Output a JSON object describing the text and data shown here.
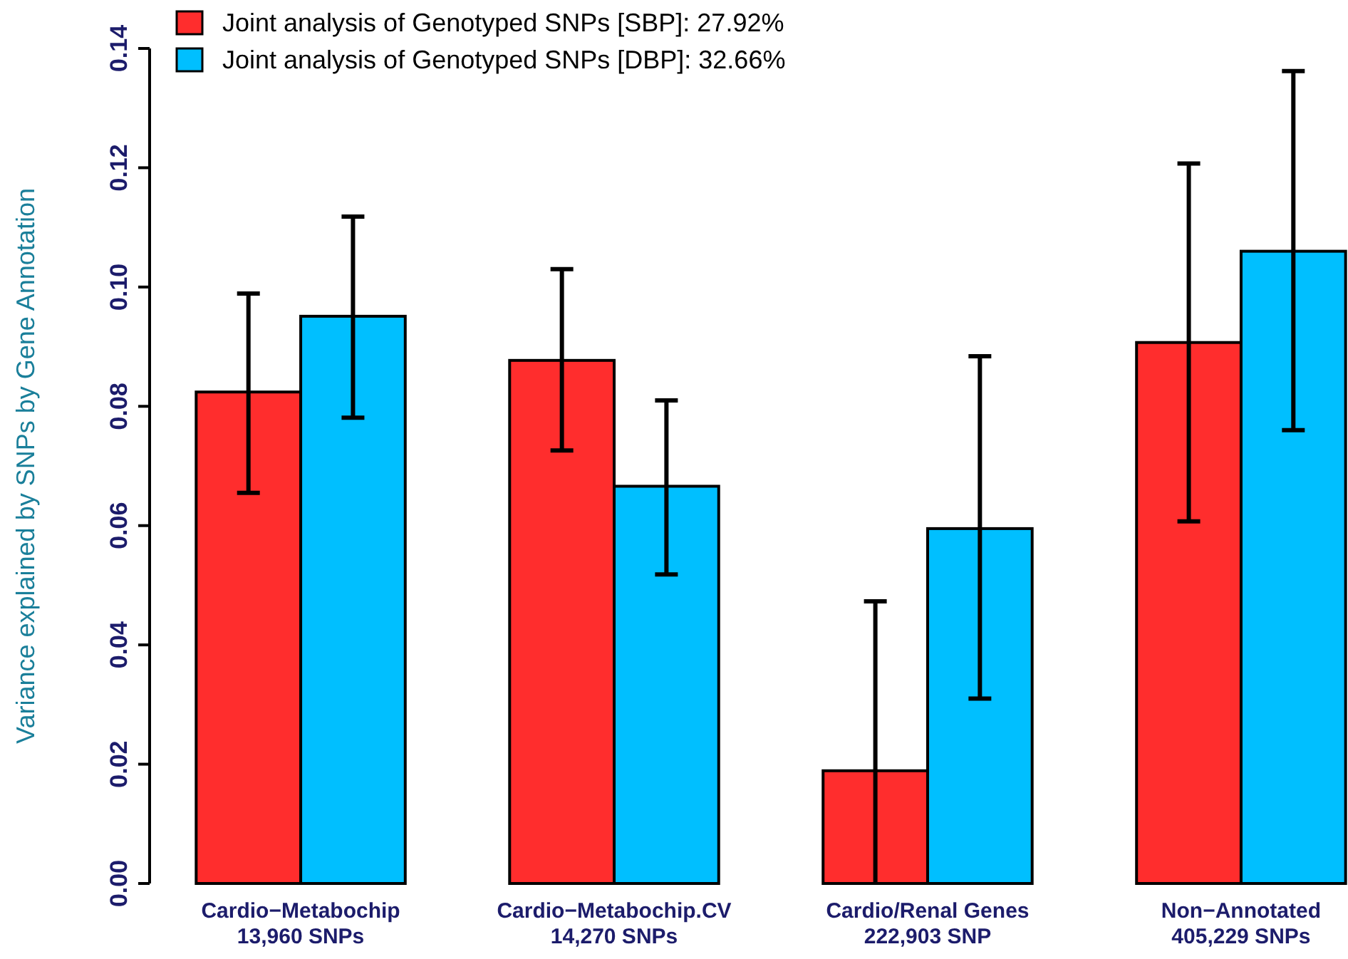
{
  "chart_data": {
    "type": "bar",
    "ylabel": "Variance explained by SNPs by Gene Annotation",
    "categories": [
      "Cardio−Metabochip\n13,960 SNPs",
      "Cardio−Metabochip.CV\n14,270 SNPs",
      "Cardio/Renal Genes\n222,903 SNP",
      "Non−Annotated\n405,229 SNPs"
    ],
    "series": [
      {
        "name": "Joint analysis of Genotyped SNPs [SBP]: 27.92%",
        "color": "#ff2d2d",
        "values": [
          0.0824,
          0.0877,
          0.0189,
          0.0907
        ],
        "errors": [
          [
            0.0655,
            0.0989
          ],
          [
            0.0726,
            0.103
          ],
          [
            0,
            0.0473
          ],
          [
            0.0607,
            0.1207
          ]
        ]
      },
      {
        "name": "Joint analysis of Genotyped SNPs [DBP]: 32.66%",
        "color": "#00bfff",
        "values": [
          0.0951,
          0.0666,
          0.0595,
          0.106
        ],
        "errors": [
          [
            0.0781,
            0.1118
          ],
          [
            0.0518,
            0.081
          ],
          [
            0.031,
            0.0884
          ],
          [
            0.076,
            0.1362
          ]
        ]
      }
    ],
    "ylim": [
      0,
      0.14
    ],
    "yticks": [
      {
        "value": 0,
        "label": "0.00"
      },
      {
        "value": 0.02,
        "label": "0.02"
      },
      {
        "value": 0.04,
        "label": "0.04"
      },
      {
        "value": 0.06,
        "label": "0.06"
      },
      {
        "value": 0.08,
        "label": "0.08"
      },
      {
        "value": 0.1,
        "label": "0.10"
      },
      {
        "value": 0.12,
        "label": "0.12"
      },
      {
        "value": 0.14,
        "label": "0.14"
      }
    ],
    "legend": "top left"
  }
}
